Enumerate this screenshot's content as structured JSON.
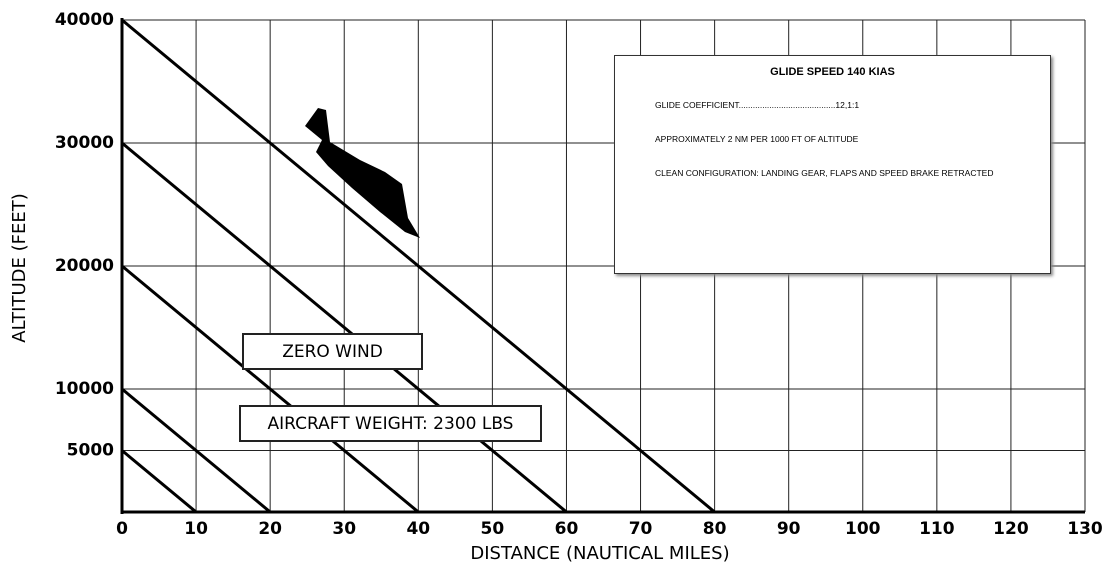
{
  "chart_data": {
    "type": "line",
    "xlabel": "DISTANCE (NAUTICAL MILES)",
    "ylabel": "ALTITUDE (FEET)",
    "xlim": [
      0,
      130
    ],
    "xticks": [
      0,
      10,
      20,
      30,
      40,
      50,
      60,
      70,
      80,
      90,
      100,
      110,
      120,
      130
    ],
    "ylim": [
      0,
      40000
    ],
    "yticks": [
      5000,
      10000,
      20000,
      30000,
      40000
    ],
    "grid": true,
    "series": [
      {
        "color": "#000000",
        "x": [
          0,
          10
        ],
        "values": [
          5000,
          0
        ]
      },
      {
        "color": "#000000",
        "x": [
          0,
          20
        ],
        "values": [
          10000,
          0
        ]
      },
      {
        "color": "#000000",
        "x": [
          0,
          40
        ],
        "values": [
          20000,
          0
        ]
      },
      {
        "color": "#000000",
        "x": [
          0,
          60
        ],
        "values": [
          30000,
          0
        ]
      },
      {
        "color": "#000000",
        "x": [
          0,
          80
        ],
        "values": [
          40000,
          0
        ]
      }
    ],
    "annotations": [
      "ZERO WIND",
      "AIRCRAFT WEIGHT: 2300 LBS"
    ],
    "info_box": {
      "title": "GLIDE SPEED 140 KIAS",
      "lines": [
        "GLIDE COEFFICIENT.........................................12,1:1",
        "APPROXIMATELY 2 NM PER 1000 FT OF ALTITUDE",
        "CLEAN CONFIGURATION: LANDING GEAR, FLAPS AND SPEED BRAKE RETRACTED"
      ]
    }
  }
}
